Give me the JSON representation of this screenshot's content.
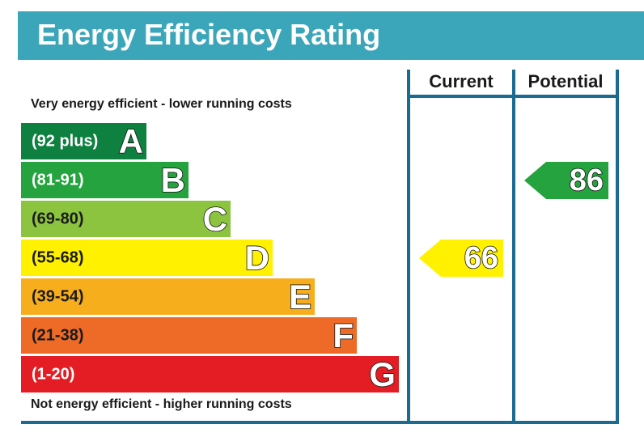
{
  "header": {
    "title": "Energy Efficiency Rating"
  },
  "captions": {
    "top": "Very energy efficient - lower running costs",
    "bottom": "Not energy efficient - higher running costs"
  },
  "columns": {
    "current": "Current",
    "potential": "Potential"
  },
  "chart_data": {
    "type": "bar",
    "title": "Energy Efficiency Rating",
    "bands": [
      {
        "letter": "A",
        "range": "(92 plus)",
        "color": "#0e8040",
        "text_color": "#ffffff",
        "length": 7
      },
      {
        "letter": "B",
        "range": "(81-91)",
        "color": "#24a33f",
        "text_color": "#ffffff",
        "length": 8
      },
      {
        "letter": "C",
        "range": "(69-80)",
        "color": "#8cc43f",
        "text_color": "#1a1a1a",
        "length": 9
      },
      {
        "letter": "D",
        "range": "(55-68)",
        "color": "#fff100",
        "text_color": "#1a1a1a",
        "length": 10
      },
      {
        "letter": "E",
        "range": "(39-54)",
        "color": "#f7ae1d",
        "text_color": "#1a1a1a",
        "length": 11
      },
      {
        "letter": "F",
        "range": "(21-38)",
        "color": "#ee6b27",
        "text_color": "#1a1a1a",
        "length": 12
      },
      {
        "letter": "G",
        "range": "(1-20)",
        "color": "#e31d23",
        "text_color": "#ffffff",
        "length": 13
      }
    ],
    "current": {
      "value": 66,
      "band": "D",
      "color": "#fff100"
    },
    "potential": {
      "value": 86,
      "band": "B",
      "color": "#24a33f"
    }
  }
}
